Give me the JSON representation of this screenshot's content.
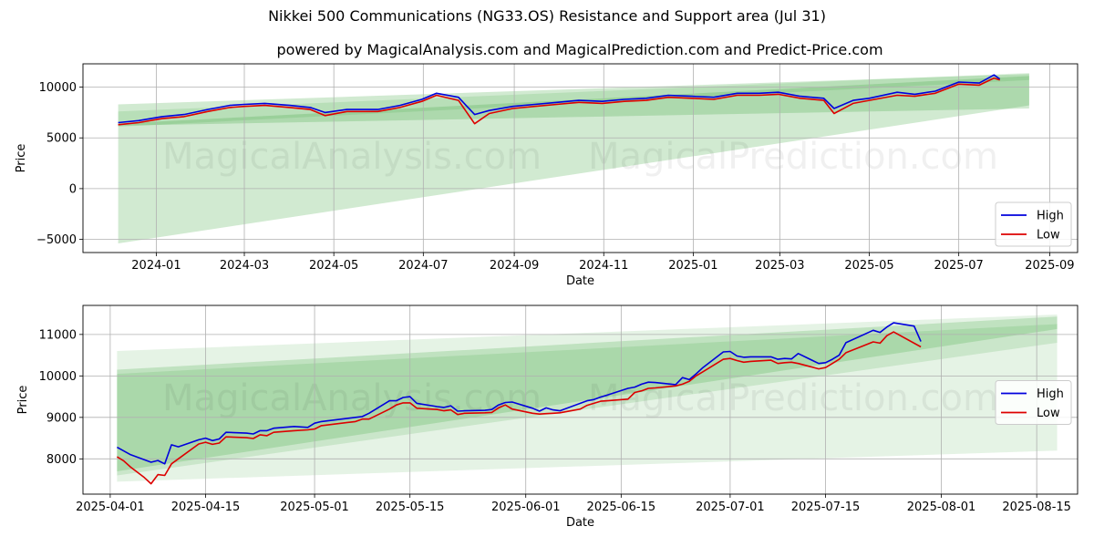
{
  "figure": {
    "title": "Nikkei 500 Communications (NG33.OS) Resistance and Support area (Jul 31)",
    "subtitle": "powered by MagicalAnalysis.com and MagicalPrediction.com and Predict-Price.com",
    "watermark": "MagicalAnalysis.com    MagicalPrediction.com"
  },
  "colors": {
    "high": "#0000dd",
    "low": "#dd0000",
    "band": "#2ca02c",
    "grid": "#b0b0b0"
  },
  "chart_data": [
    {
      "type": "line",
      "xlabel": "Date",
      "ylabel": "Price",
      "x_tick_labels": [
        "2024-01",
        "2024-03",
        "2024-05",
        "2024-07",
        "2024-09",
        "2024-11",
        "2025-01",
        "2025-03",
        "2025-05",
        "2025-07",
        "2025-09"
      ],
      "x_tick_dates": [
        "2024-01-01",
        "2024-03-01",
        "2024-05-01",
        "2024-07-01",
        "2024-09-01",
        "2024-11-01",
        "2025-01-01",
        "2025-03-01",
        "2025-05-01",
        "2025-07-01",
        "2025-09-01"
      ],
      "y_ticks": [
        -5000,
        0,
        5000,
        10000
      ],
      "y_tick_labels": [
        "−5000",
        "0",
        "5000",
        "10000"
      ],
      "xlim": [
        "2023-11-12",
        "2025-09-20"
      ],
      "ylim": [
        -6300,
        12300
      ],
      "grid": true,
      "legend": "lower-right",
      "series": [
        {
          "name": "High",
          "x": [
            "2023-12-06",
            "2023-12-20",
            "2024-01-05",
            "2024-01-20",
            "2024-02-05",
            "2024-02-20",
            "2024-03-01",
            "2024-03-15",
            "2024-04-01",
            "2024-04-15",
            "2024-04-25",
            "2024-05-10",
            "2024-05-31",
            "2024-06-15",
            "2024-06-30",
            "2024-07-10",
            "2024-07-25",
            "2024-08-05",
            "2024-08-15",
            "2024-08-31",
            "2024-09-15",
            "2024-09-30",
            "2024-10-15",
            "2024-10-31",
            "2024-11-15",
            "2024-11-30",
            "2024-12-15",
            "2024-12-31",
            "2025-01-15",
            "2025-01-31",
            "2025-02-15",
            "2025-02-28",
            "2025-03-15",
            "2025-03-31",
            "2025-04-07",
            "2025-04-20",
            "2025-05-01",
            "2025-05-20",
            "2025-06-01",
            "2025-06-15",
            "2025-07-01",
            "2025-07-15",
            "2025-07-25",
            "2025-07-29"
          ],
          "values": [
            6500,
            6700,
            7100,
            7300,
            7800,
            8200,
            8300,
            8400,
            8200,
            8000,
            7500,
            7800,
            7800,
            8200,
            8800,
            9400,
            9000,
            7300,
            7700,
            8100,
            8300,
            8500,
            8700,
            8600,
            8800,
            8900,
            9200,
            9100,
            9000,
            9400,
            9400,
            9500,
            9100,
            8900,
            7900,
            8700,
            8900,
            9500,
            9300,
            9600,
            10500,
            10400,
            11200,
            10800
          ]
        },
        {
          "name": "Low",
          "x": [
            "2023-12-06",
            "2023-12-20",
            "2024-01-05",
            "2024-01-20",
            "2024-02-05",
            "2024-02-20",
            "2024-03-01",
            "2024-03-15",
            "2024-04-01",
            "2024-04-15",
            "2024-04-25",
            "2024-05-10",
            "2024-05-31",
            "2024-06-15",
            "2024-06-30",
            "2024-07-10",
            "2024-07-25",
            "2024-08-05",
            "2024-08-15",
            "2024-08-31",
            "2024-09-15",
            "2024-09-30",
            "2024-10-15",
            "2024-10-31",
            "2024-11-15",
            "2024-11-30",
            "2024-12-15",
            "2024-12-31",
            "2025-01-15",
            "2025-01-31",
            "2025-02-15",
            "2025-02-28",
            "2025-03-15",
            "2025-03-31",
            "2025-04-07",
            "2025-04-20",
            "2025-05-01",
            "2025-05-20",
            "2025-06-01",
            "2025-06-15",
            "2025-07-01",
            "2025-07-15",
            "2025-07-25",
            "2025-07-29"
          ],
          "values": [
            6300,
            6500,
            6900,
            7100,
            7600,
            8000,
            8100,
            8200,
            8000,
            7800,
            7200,
            7600,
            7600,
            8000,
            8600,
            9200,
            8700,
            6400,
            7400,
            7900,
            8100,
            8300,
            8500,
            8400,
            8600,
            8700,
            9000,
            8900,
            8800,
            9200,
            9200,
            9300,
            8900,
            8700,
            7400,
            8400,
            8700,
            9200,
            9100,
            9400,
            10300,
            10200,
            10900,
            10700
          ]
        }
      ],
      "bands": [
        {
          "x": [
            "2023-12-06",
            "2025-08-18"
          ],
          "upper": [
            8300,
            11300
          ],
          "lower": [
            -5400,
            8200
          ],
          "opacity": 0.22
        },
        {
          "x": [
            "2023-12-06",
            "2025-08-18"
          ],
          "upper": [
            6400,
            11100
          ],
          "lower": [
            6200,
            7900
          ],
          "opacity": 0.22
        },
        {
          "x": [
            "2023-12-06",
            "2025-08-18"
          ],
          "upper": [
            7600,
            11400
          ],
          "lower": [
            6100,
            10700
          ],
          "opacity": 0.15
        }
      ]
    },
    {
      "type": "line",
      "xlabel": "Date",
      "ylabel": "Price",
      "x_tick_labels": [
        "2025-04-01",
        "2025-04-15",
        "2025-05-01",
        "2025-05-15",
        "2025-06-01",
        "2025-06-15",
        "2025-07-01",
        "2025-07-15",
        "2025-08-01",
        "2025-08-15"
      ],
      "x_tick_dates": [
        "2025-04-01",
        "2025-04-15",
        "2025-05-01",
        "2025-05-15",
        "2025-06-01",
        "2025-06-15",
        "2025-07-01",
        "2025-07-15",
        "2025-08-01",
        "2025-08-15"
      ],
      "y_ticks": [
        8000,
        9000,
        10000,
        11000
      ],
      "y_tick_labels": [
        "8000",
        "9000",
        "10000",
        "11000"
      ],
      "xlim": [
        "2025-03-28",
        "2025-08-21"
      ],
      "ylim": [
        7150,
        11700
      ],
      "grid": true,
      "legend": "right",
      "series": [
        {
          "name": "High",
          "x": [
            "2025-04-02",
            "2025-04-04",
            "2025-04-07",
            "2025-04-08",
            "2025-04-09",
            "2025-04-10",
            "2025-04-11",
            "2025-04-14",
            "2025-04-15",
            "2025-04-16",
            "2025-04-17",
            "2025-04-18",
            "2025-04-21",
            "2025-04-22",
            "2025-04-23",
            "2025-04-24",
            "2025-04-25",
            "2025-04-28",
            "2025-04-30",
            "2025-05-01",
            "2025-05-02",
            "2025-05-07",
            "2025-05-08",
            "2025-05-09",
            "2025-05-12",
            "2025-05-13",
            "2025-05-14",
            "2025-05-15",
            "2025-05-16",
            "2025-05-19",
            "2025-05-20",
            "2025-05-21",
            "2025-05-22",
            "2025-05-23",
            "2025-05-26",
            "2025-05-27",
            "2025-05-28",
            "2025-05-29",
            "2025-05-30",
            "2025-06-02",
            "2025-06-03",
            "2025-06-04",
            "2025-06-05",
            "2025-06-06",
            "2025-06-09",
            "2025-06-10",
            "2025-06-11",
            "2025-06-12",
            "2025-06-13",
            "2025-06-16",
            "2025-06-17",
            "2025-06-18",
            "2025-06-19",
            "2025-06-20",
            "2025-06-23",
            "2025-06-24",
            "2025-06-25",
            "2025-06-26",
            "2025-06-27",
            "2025-06-30",
            "2025-07-01",
            "2025-07-02",
            "2025-07-03",
            "2025-07-04",
            "2025-07-07",
            "2025-07-08",
            "2025-07-09",
            "2025-07-10",
            "2025-07-11",
            "2025-07-14",
            "2025-07-15",
            "2025-07-16",
            "2025-07-17",
            "2025-07-18",
            "2025-07-22",
            "2025-07-23",
            "2025-07-24",
            "2025-07-25",
            "2025-07-28",
            "2025-07-29"
          ],
          "values": [
            8280,
            8100,
            7920,
            7960,
            7880,
            8340,
            8290,
            8460,
            8500,
            8440,
            8480,
            8640,
            8620,
            8600,
            8680,
            8680,
            8740,
            8780,
            8760,
            8860,
            8900,
            9000,
            9020,
            9100,
            9400,
            9400,
            9480,
            9500,
            9340,
            9260,
            9240,
            9280,
            9150,
            9160,
            9170,
            9190,
            9300,
            9360,
            9370,
            9220,
            9150,
            9230,
            9180,
            9160,
            9340,
            9400,
            9430,
            9490,
            9540,
            9700,
            9730,
            9800,
            9850,
            9840,
            9790,
            9960,
            9910,
            10050,
            10200,
            10580,
            10590,
            10480,
            10450,
            10460,
            10460,
            10400,
            10420,
            10410,
            10540,
            10300,
            10320,
            10400,
            10500,
            10800,
            11100,
            11050,
            11180,
            11280,
            11200,
            10830
          ]
        },
        {
          "name": "Low",
          "x": [
            "2025-04-02",
            "2025-04-03",
            "2025-04-04",
            "2025-04-06",
            "2025-04-07",
            "2025-04-08",
            "2025-04-09",
            "2025-04-10",
            "2025-04-11",
            "2025-04-14",
            "2025-04-15",
            "2025-04-16",
            "2025-04-17",
            "2025-04-18",
            "2025-04-21",
            "2025-04-22",
            "2025-04-23",
            "2025-04-24",
            "2025-04-25",
            "2025-04-28",
            "2025-04-30",
            "2025-05-01",
            "2025-05-02",
            "2025-05-07",
            "2025-05-08",
            "2025-05-09",
            "2025-05-12",
            "2025-05-13",
            "2025-05-14",
            "2025-05-15",
            "2025-05-16",
            "2025-05-19",
            "2025-05-20",
            "2025-05-21",
            "2025-05-22",
            "2025-05-23",
            "2025-05-26",
            "2025-05-27",
            "2025-05-28",
            "2025-05-29",
            "2025-05-30",
            "2025-06-02",
            "2025-06-03",
            "2025-06-04",
            "2025-06-05",
            "2025-06-06",
            "2025-06-09",
            "2025-06-10",
            "2025-06-11",
            "2025-06-12",
            "2025-06-13",
            "2025-06-16",
            "2025-06-17",
            "2025-06-18",
            "2025-06-19",
            "2025-06-20",
            "2025-06-23",
            "2025-06-24",
            "2025-06-25",
            "2025-06-26",
            "2025-06-27",
            "2025-06-30",
            "2025-07-01",
            "2025-07-02",
            "2025-07-03",
            "2025-07-04",
            "2025-07-07",
            "2025-07-08",
            "2025-07-09",
            "2025-07-10",
            "2025-07-11",
            "2025-07-14",
            "2025-07-15",
            "2025-07-16",
            "2025-07-17",
            "2025-07-18",
            "2025-07-22",
            "2025-07-23",
            "2025-07-24",
            "2025-07-25",
            "2025-07-29"
          ],
          "values": [
            8050,
            7950,
            7800,
            7550,
            7400,
            7620,
            7600,
            7880,
            8000,
            8360,
            8400,
            8350,
            8380,
            8530,
            8510,
            8490,
            8580,
            8560,
            8640,
            8680,
            8700,
            8720,
            8800,
            8900,
            8960,
            8960,
            9200,
            9300,
            9350,
            9350,
            9220,
            9190,
            9160,
            9180,
            9070,
            9100,
            9110,
            9120,
            9230,
            9300,
            9200,
            9100,
            9080,
            9090,
            9100,
            9110,
            9200,
            9290,
            9340,
            9390,
            9400,
            9440,
            9600,
            9640,
            9700,
            9710,
            9760,
            9800,
            9870,
            10000,
            10100,
            10400,
            10420,
            10370,
            10330,
            10350,
            10380,
            10300,
            10320,
            10330,
            10300,
            10170,
            10200,
            10300,
            10400,
            10560,
            10820,
            10790,
            10970,
            11060,
            10700
          ]
        }
      ],
      "bands": [
        {
          "x": [
            "2025-04-02",
            "2025-08-18"
          ],
          "upper": [
            10600,
            11480
          ],
          "lower": [
            7450,
            8200
          ],
          "opacity": 0.12
        },
        {
          "x": [
            "2025-04-02",
            "2025-08-18"
          ],
          "upper": [
            10150,
            11430
          ],
          "lower": [
            7700,
            11130
          ],
          "opacity": 0.2
        },
        {
          "x": [
            "2025-04-02",
            "2025-08-18"
          ],
          "upper": [
            10050,
            11250
          ],
          "lower": [
            7600,
            10800
          ],
          "opacity": 0.15
        }
      ]
    }
  ]
}
